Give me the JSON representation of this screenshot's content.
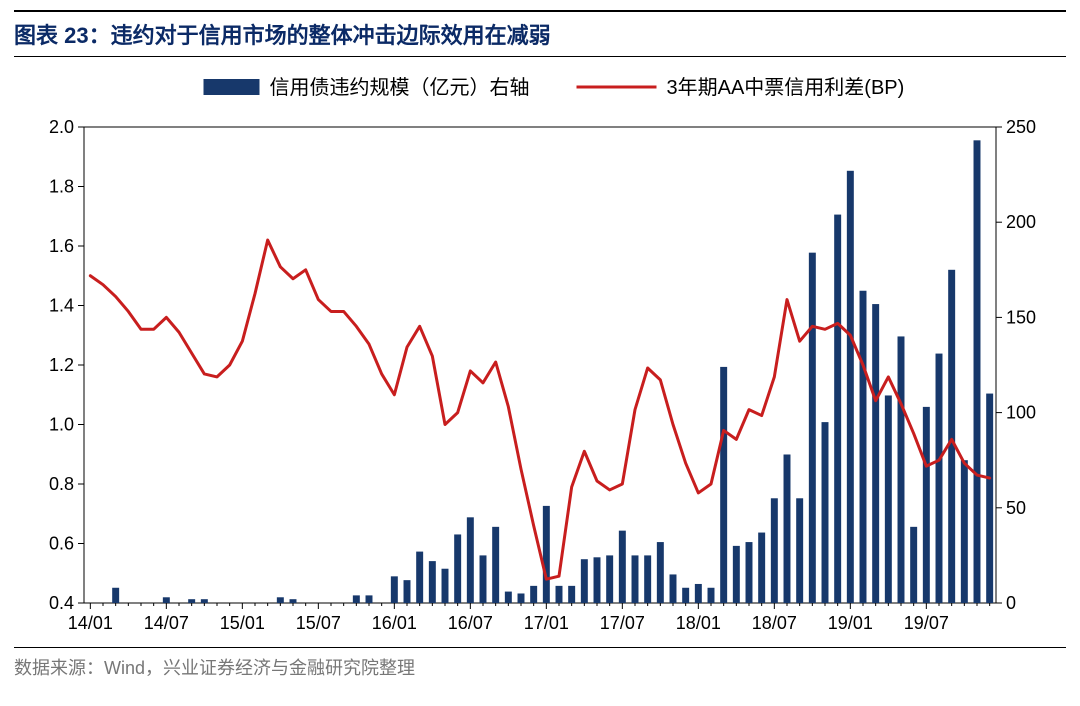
{
  "title_prefix": "图表 23：",
  "title_text": "违约对于信用市场的整体冲击边际效用在减弱",
  "footer": "数据来源：Wind，兴业证券经济与金融研究院整理",
  "chart": {
    "type": "combo-bar-line",
    "background_color": "#ffffff",
    "plot_border_color": "#000000",
    "plot_border_width": 1,
    "title_fontsize": 22,
    "title_color": "#0b2a66",
    "footer_fontsize": 18,
    "footer_color": "#777777",
    "axis_fontsize": 18,
    "legend_fontsize": 20,
    "bar_series": {
      "label": "信用债违约规模（亿元）右轴",
      "color": "#17386b",
      "axis": "right",
      "bar_width_ratio": 0.55
    },
    "line_series": {
      "label": "3年期AA中票信用利差(BP)",
      "color": "#c81e1e",
      "axis": "left",
      "line_width": 3
    },
    "left_axis": {
      "lim": [
        0.4,
        2.0
      ],
      "ticks": [
        0.4,
        0.6,
        0.8,
        1.0,
        1.2,
        1.4,
        1.6,
        1.8,
        2.0
      ],
      "tick_format": "one_decimal"
    },
    "right_axis": {
      "lim": [
        0,
        250
      ],
      "ticks": [
        0,
        50,
        100,
        150,
        200,
        250
      ]
    },
    "x_axis": {
      "tick_labels": [
        "14/01",
        "14/07",
        "15/01",
        "15/07",
        "16/01",
        "16/07",
        "17/01",
        "17/07",
        "18/01",
        "18/07",
        "19/01",
        "19/07"
      ],
      "tick_every": 6,
      "tick_len_major": 6
    },
    "legend": {
      "swatch_bar": {
        "w": 56,
        "h": 16
      },
      "swatch_line_len": 80,
      "gap": 10
    },
    "categories": [
      "14/01",
      "14/02",
      "14/03",
      "14/04",
      "14/05",
      "14/06",
      "14/07",
      "14/08",
      "14/09",
      "14/10",
      "14/11",
      "14/12",
      "15/01",
      "15/02",
      "15/03",
      "15/04",
      "15/05",
      "15/06",
      "15/07",
      "15/08",
      "15/09",
      "15/10",
      "15/11",
      "15/12",
      "16/01",
      "16/02",
      "16/03",
      "16/04",
      "16/05",
      "16/06",
      "16/07",
      "16/08",
      "16/09",
      "16/10",
      "16/11",
      "16/12",
      "17/01",
      "17/02",
      "17/03",
      "17/04",
      "17/05",
      "17/06",
      "17/07",
      "17/08",
      "17/09",
      "17/10",
      "17/11",
      "17/12",
      "18/01",
      "18/02",
      "18/03",
      "18/04",
      "18/05",
      "18/06",
      "18/07",
      "18/08",
      "18/09",
      "18/10",
      "18/11",
      "18/12",
      "19/01",
      "19/02",
      "19/03",
      "19/04",
      "19/05",
      "19/06",
      "19/07",
      "19/08",
      "19/09",
      "19/10",
      "19/11",
      "19/12"
    ],
    "bar_values": [
      0,
      0,
      8,
      0,
      0,
      0,
      3,
      0,
      2,
      2,
      0,
      0,
      0,
      0,
      0,
      3,
      2,
      0,
      0,
      0,
      0,
      4,
      4,
      0,
      14,
      12,
      27,
      22,
      18,
      36,
      45,
      25,
      40,
      6,
      5,
      9,
      51,
      9,
      9,
      23,
      24,
      25,
      38,
      25,
      25,
      32,
      15,
      8,
      10,
      8,
      124,
      30,
      32,
      37,
      55,
      78,
      55,
      184,
      95,
      204,
      227,
      164,
      157,
      109,
      140,
      40,
      103,
      131,
      175,
      75,
      243,
      110
    ],
    "line_values": [
      1.5,
      1.47,
      1.43,
      1.38,
      1.32,
      1.32,
      1.36,
      1.31,
      1.24,
      1.17,
      1.16,
      1.2,
      1.28,
      1.44,
      1.62,
      1.53,
      1.49,
      1.52,
      1.42,
      1.38,
      1.38,
      1.33,
      1.27,
      1.17,
      1.1,
      1.26,
      1.33,
      1.23,
      1.0,
      1.04,
      1.18,
      1.14,
      1.21,
      1.06,
      0.85,
      0.66,
      0.48,
      0.49,
      0.79,
      0.91,
      0.81,
      0.78,
      0.8,
      1.05,
      1.19,
      1.15,
      1.0,
      0.87,
      0.77,
      0.8,
      0.98,
      0.95,
      1.05,
      1.03,
      1.16,
      1.42,
      1.28,
      1.33,
      1.32,
      1.34,
      1.3,
      1.2,
      1.08,
      1.16,
      1.07,
      0.97,
      0.86,
      0.88,
      0.95,
      0.87,
      0.83,
      0.82
    ]
  }
}
